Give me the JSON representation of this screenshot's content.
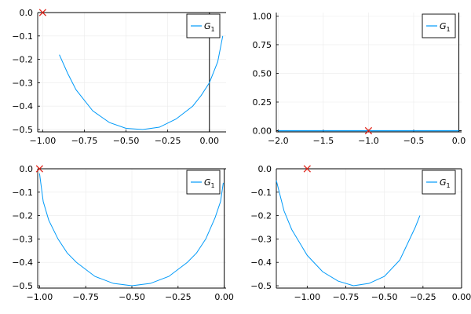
{
  "chart_data": [
    {
      "type": "line",
      "series": [
        {
          "name": "G_1",
          "x": [
            -0.9,
            -0.85,
            -0.8,
            -0.7,
            -0.6,
            -0.5,
            -0.4,
            -0.3,
            -0.2,
            -0.1,
            -0.05,
            0.0,
            0.05,
            0.08
          ],
          "y": [
            -0.18,
            -0.26,
            -0.33,
            -0.42,
            -0.47,
            -0.495,
            -0.5,
            -0.49,
            -0.455,
            -0.4,
            -0.355,
            -0.3,
            -0.21,
            -0.1
          ]
        }
      ],
      "marker": {
        "x": -1.0,
        "y": 0.0,
        "symbol": "x"
      },
      "xlim": [
        -1.03,
        0.1
      ],
      "ylim": [
        -0.51,
        0.0
      ],
      "xticks": [
        -1.0,
        -0.75,
        -0.5,
        -0.25,
        0.0
      ],
      "xticklabels": [
        "−1.00",
        "−0.75",
        "−0.50",
        "−0.25",
        "0.00"
      ],
      "yticks": [
        0.0,
        -0.1,
        -0.2,
        -0.3,
        -0.4,
        -0.5
      ],
      "yticklabels": [
        "0.0",
        "−0.1",
        "−0.2",
        "−0.3",
        "−0.4",
        "−0.5"
      ],
      "grid": true,
      "legend": "top-right",
      "legend_label": {
        "base": "G",
        "sub": "1"
      }
    },
    {
      "type": "line",
      "series": [
        {
          "name": "G_1",
          "x": [
            -2.0,
            -1.5,
            -1.0,
            -0.5,
            0.0
          ],
          "y": [
            0.0,
            0.0,
            0.0,
            0.0,
            0.0
          ]
        }
      ],
      "marker": {
        "x": -1.0,
        "y": 0.0,
        "symbol": "x"
      },
      "xlim": [
        -2.02,
        0.03
      ],
      "ylim": [
        -0.01,
        1.03
      ],
      "xticks": [
        -2.0,
        -1.5,
        -1.0,
        -0.5,
        0.0
      ],
      "xticklabels": [
        "−2.0",
        "−1.5",
        "−1.0",
        "−0.5",
        "0.0"
      ],
      "yticks": [
        0.0,
        0.25,
        0.5,
        0.75,
        1.0
      ],
      "yticklabels": [
        "0.00",
        "0.25",
        "0.50",
        "0.75",
        "1.00"
      ],
      "grid": true,
      "legend": "top-right",
      "legend_label": {
        "base": "G",
        "sub": "1"
      }
    },
    {
      "type": "line",
      "series": [
        {
          "name": "G_1",
          "x": [
            -1.0,
            -0.98,
            -0.95,
            -0.9,
            -0.85,
            -0.8,
            -0.7,
            -0.6,
            -0.5,
            -0.4,
            -0.3,
            -0.2,
            -0.15,
            -0.1,
            -0.05,
            -0.02,
            -0.005
          ],
          "y": [
            -0.02,
            -0.14,
            -0.22,
            -0.3,
            -0.36,
            -0.4,
            -0.46,
            -0.49,
            -0.5,
            -0.49,
            -0.46,
            -0.4,
            -0.36,
            -0.3,
            -0.21,
            -0.14,
            -0.06
          ]
        }
      ],
      "marker": {
        "x": -1.0,
        "y": 0.0,
        "symbol": "x"
      },
      "xlim": [
        -1.01,
        0.01
      ],
      "ylim": [
        -0.51,
        0.0
      ],
      "xticks": [
        -1.0,
        -0.75,
        -0.5,
        -0.25,
        0.0
      ],
      "xticklabels": [
        "−1.00",
        "−0.75",
        "−0.50",
        "−0.25",
        "0.00"
      ],
      "yticks": [
        0.0,
        -0.1,
        -0.2,
        -0.3,
        -0.4,
        -0.5
      ],
      "yticklabels": [
        "0.0",
        "−0.1",
        "−0.2",
        "−0.3",
        "−0.4",
        "−0.5"
      ],
      "grid": true,
      "legend": "top-right",
      "legend_label": {
        "base": "G",
        "sub": "1"
      }
    },
    {
      "type": "line",
      "series": [
        {
          "name": "G_1",
          "x": [
            -1.2,
            -1.15,
            -1.1,
            -1.0,
            -0.9,
            -0.8,
            -0.7,
            -0.6,
            -0.5,
            -0.4,
            -0.3,
            -0.27
          ],
          "y": [
            -0.05,
            -0.18,
            -0.26,
            -0.37,
            -0.44,
            -0.48,
            -0.5,
            -0.49,
            -0.46,
            -0.39,
            -0.25,
            -0.2
          ]
        }
      ],
      "marker": {
        "x": -1.0,
        "y": 0.0,
        "symbol": "x"
      },
      "xlim": [
        -1.2,
        0.0
      ],
      "ylim": [
        -0.51,
        0.0
      ],
      "xticks": [
        -1.0,
        -0.75,
        -0.5,
        -0.25,
        0.0
      ],
      "xticklabels": [
        "−1.00",
        "−0.75",
        "−0.50",
        "−0.25",
        "0.00"
      ],
      "yticks": [
        0.0,
        -0.1,
        -0.2,
        -0.3,
        -0.4,
        -0.5
      ],
      "yticklabels": [
        "0.0",
        "−0.1",
        "−0.2",
        "−0.3",
        "−0.4",
        "−0.5"
      ],
      "grid": true,
      "legend": "top-right",
      "legend_label": {
        "base": "G",
        "sub": "1"
      }
    }
  ],
  "colors": {
    "series": "#009af9",
    "marker": "#e0261c",
    "axis": "#000000",
    "grid": "#ebebeb",
    "text": "#000000"
  }
}
